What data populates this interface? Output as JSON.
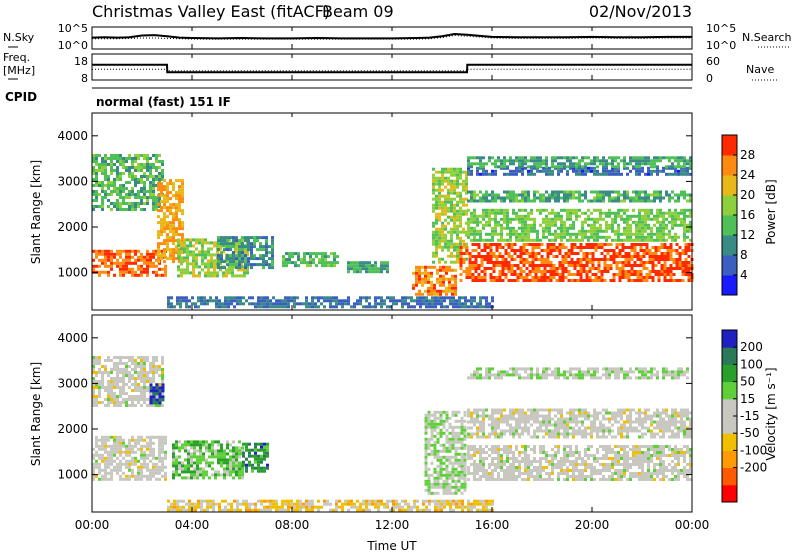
{
  "header": {
    "title": "Christmas Valley East (fitACF)",
    "beam": "Beam 09",
    "date": "02/Nov/2013"
  },
  "cpid": {
    "label": "CPID",
    "value": "normal (fast) 151 IF"
  },
  "x_axis": {
    "label": "Time UT",
    "range": [
      0,
      24
    ],
    "ticks": [
      0,
      4,
      8,
      12,
      16,
      20,
      24
    ],
    "tick_labels": [
      "00:00",
      "04:00",
      "08:00",
      "12:00",
      "16:00",
      "20:00",
      "00:00"
    ]
  },
  "chart_data": [
    {
      "type": "line",
      "panel": "nsky-nsearch",
      "left_label": "N.Sky",
      "right_label": "N.Search",
      "left_ticks": [
        "10^5",
        "10^0"
      ],
      "right_ticks": [
        "10^5",
        "10^0"
      ],
      "x": [
        0,
        0.5,
        1,
        1.5,
        2,
        2.5,
        3,
        3.5,
        4,
        5,
        6,
        7,
        8,
        9,
        10,
        11,
        12,
        13,
        13.5,
        14,
        14.5,
        15,
        16,
        17,
        18,
        19,
        20,
        21,
        22,
        23,
        24
      ],
      "series": [
        {
          "name": "N.Sky",
          "values": [
            2.6,
            2.7,
            2.6,
            2.7,
            3.2,
            3.3,
            3.0,
            2.6,
            2.5,
            2.4,
            2.5,
            2.4,
            2.4,
            2.5,
            2.4,
            2.4,
            2.4,
            2.5,
            2.6,
            3.0,
            3.6,
            3.4,
            2.8,
            2.7,
            2.7,
            2.7,
            2.8,
            2.7,
            2.7,
            2.8,
            2.8
          ]
        },
        {
          "name": "N.Search",
          "values": [
            2.3,
            2.3,
            2.3,
            2.4,
            2.5,
            2.5,
            2.4,
            2.3,
            2.2,
            2.2,
            2.2,
            2.2,
            2.2,
            2.2,
            2.2,
            2.2,
            2.2,
            2.2,
            2.3,
            2.6,
            3.2,
            3.0,
            2.5,
            2.4,
            2.4,
            2.4,
            2.5,
            2.4,
            2.4,
            2.5,
            2.5
          ]
        }
      ],
      "ylim": [
        0,
        5
      ]
    },
    {
      "type": "line",
      "panel": "freq-nave",
      "left_label": "Freq.",
      "left_unit": "[MHz]",
      "right_label": "Nave",
      "left_ticks": [
        18,
        8
      ],
      "right_ticks": [
        60,
        0
      ],
      "x": [
        0,
        3,
        3.01,
        15,
        15.01,
        24
      ],
      "series": [
        {
          "name": "Freq.",
          "values": [
            14,
            14,
            10.6,
            10.6,
            14,
            14
          ]
        },
        {
          "name": "Nave",
          "values": [
            24,
            24,
            20,
            20,
            24,
            24
          ]
        }
      ],
      "ylim_left": [
        8,
        18
      ],
      "ylim_right": [
        0,
        60
      ]
    },
    {
      "type": "heatmap",
      "panel": "power",
      "ylabel": "Slant Range [km]",
      "ylim": [
        180,
        4500
      ],
      "yticks": [
        1000,
        2000,
        3000,
        4000
      ],
      "colorbar": {
        "label": "Power [dB]",
        "range": [
          0,
          32
        ],
        "ticks": [
          4,
          8,
          12,
          16,
          20,
          24,
          28
        ],
        "colors": [
          "#1a1aff",
          "#3a5fc0",
          "#3a8a86",
          "#4fbf57",
          "#8ecf3c",
          "#e8b818",
          "#ff8a10",
          "#ff2a00"
        ]
      },
      "regions": [
        {
          "t0": 0.0,
          "t1": 2.9,
          "r0": 950,
          "r1": 1500,
          "level": 28
        },
        {
          "t0": 0.0,
          "t1": 2.8,
          "r0": 2400,
          "r1": 3600,
          "level": 14
        },
        {
          "t0": 2.6,
          "t1": 3.6,
          "r0": 1250,
          "r1": 3050,
          "level": 24
        },
        {
          "t0": 3.4,
          "t1": 6.2,
          "r0": 920,
          "r1": 1750,
          "level": 18
        },
        {
          "t0": 5.0,
          "t1": 7.2,
          "r0": 1100,
          "r1": 1800,
          "level": 10
        },
        {
          "t0": 7.6,
          "t1": 9.8,
          "r0": 1150,
          "r1": 1450,
          "level": 14
        },
        {
          "t0": 10.2,
          "t1": 11.8,
          "r0": 1050,
          "r1": 1250,
          "level": 12
        },
        {
          "t0": 12.8,
          "t1": 14.6,
          "r0": 500,
          "r1": 1150,
          "level": 26
        },
        {
          "t0": 13.6,
          "t1": 15.0,
          "r0": 1200,
          "r1": 3300,
          "level": 18
        },
        {
          "t0": 14.7,
          "t1": 24.0,
          "r0": 850,
          "r1": 1650,
          "level": 29
        },
        {
          "t0": 15.0,
          "t1": 24.0,
          "r0": 1700,
          "r1": 2400,
          "level": 16
        },
        {
          "t0": 15.0,
          "t1": 24.0,
          "r0": 2550,
          "r1": 2800,
          "level": 13
        },
        {
          "t0": 15.0,
          "t1": 24.0,
          "r0": 3180,
          "r1": 3320,
          "level": 7
        },
        {
          "t0": 15.0,
          "t1": 24.0,
          "r0": 3320,
          "r1": 3550,
          "level": 12
        },
        {
          "t0": 3.0,
          "t1": 16.0,
          "r0": 220,
          "r1": 480,
          "level": 8
        }
      ]
    },
    {
      "type": "heatmap",
      "panel": "velocity",
      "ylabel": "Slant Range [km]",
      "ylim": [
        180,
        4500
      ],
      "yticks": [
        1000,
        2000,
        3000,
        4000
      ],
      "colorbar": {
        "label": "Velocity [m s⁻¹]",
        "range": [
          -250,
          250
        ],
        "ticks": [
          200,
          100,
          50,
          15,
          -15,
          -50,
          -100,
          -200
        ],
        "colors": [
          "#ff0000",
          "#ff5a00",
          "#ff9a00",
          "#f0c000",
          "#c8c8c0",
          "#c8c8c0",
          "#60d03a",
          "#2aa02a",
          "#2a7a5a",
          "#2020c0"
        ]
      },
      "regions": [
        {
          "t0": 0.0,
          "t1": 3.0,
          "r0": 900,
          "r1": 1850,
          "level": 0
        },
        {
          "t0": 0.0,
          "t1": 2.8,
          "r0": 2500,
          "r1": 3600,
          "level": 0
        },
        {
          "t0": 2.3,
          "t1": 2.8,
          "r0": 2600,
          "r1": 3000,
          "level": 220
        },
        {
          "t0": 3.2,
          "t1": 6.0,
          "r0": 950,
          "r1": 1750,
          "level": 80
        },
        {
          "t0": 6.0,
          "t1": 7.0,
          "r0": 1100,
          "r1": 1700,
          "level": 150
        },
        {
          "t0": 13.3,
          "t1": 14.9,
          "r0": 600,
          "r1": 2400,
          "level": 40
        },
        {
          "t0": 15.0,
          "t1": 24.0,
          "r0": 900,
          "r1": 1650,
          "level": 0
        },
        {
          "t0": 15.0,
          "t1": 24.0,
          "r0": 1850,
          "r1": 2450,
          "level": 0
        },
        {
          "t0": 15.0,
          "t1": 24.0,
          "r0": 3150,
          "r1": 3350,
          "level": 40
        },
        {
          "t0": 3.0,
          "t1": 16.0,
          "r0": 200,
          "r1": 450,
          "level": -60
        }
      ]
    }
  ]
}
